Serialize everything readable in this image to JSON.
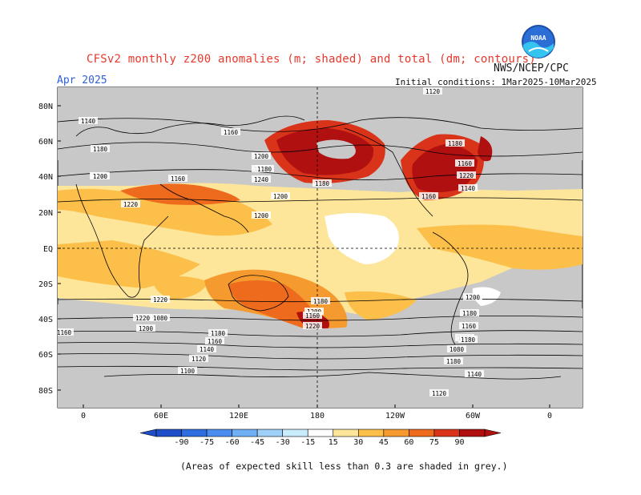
{
  "header": {
    "title": "CFSv2 monthly z200 anomalies (m; shaded) and total (dm; contours)",
    "agency": "NWS/NCEP/CPC",
    "valid_month": "Apr 2025",
    "initial_conditions": "Initial conditions: 1Mar2025-10Mar2025",
    "logo_text": "NOAA"
  },
  "map": {
    "lat_labels": [
      "80N",
      "60N",
      "40N",
      "20N",
      "EQ",
      "20S",
      "40S",
      "60S",
      "80S"
    ],
    "lon_labels": [
      "0",
      "60E",
      "120E",
      "180",
      "120W",
      "60W",
      "0"
    ]
  },
  "contour_labels": [
    "1120",
    "1140",
    "1160",
    "1180",
    "1200",
    "1220",
    "1240",
    "1140",
    "1160",
    "1180",
    "1200",
    "1220",
    "1200",
    "1180",
    "1160",
    "1220",
    "1140",
    "1160",
    "1180",
    "1200",
    "1220",
    "1220",
    "1200",
    "1180",
    "1160",
    "1220",
    "1200",
    "1160",
    "1180",
    "1160",
    "1140",
    "1120",
    "1100",
    "1080",
    "1180",
    "1140",
    "1120",
    "1100",
    "1080",
    "1200",
    "1180",
    "1160",
    "1180"
  ],
  "colorbar": {
    "ticks": [
      "-90",
      "-75",
      "-60",
      "-45",
      "-30",
      "-15",
      "15",
      "30",
      "45",
      "60",
      "75",
      "90"
    ],
    "colors": [
      "#1e4fc8",
      "#2f6ee0",
      "#4a8cf0",
      "#6fb0f5",
      "#9fd0f8",
      "#c8ecfb",
      "#ffffff",
      "#fde59a",
      "#fbbf4a",
      "#f59a2e",
      "#ee6a1c",
      "#d9341a",
      "#b01010"
    ]
  },
  "footnote": "(Areas of expected skill less than 0.3 are shaded in grey.)",
  "colors": {
    "title": "#e8382c",
    "valid": "#2f5fd8",
    "grey": "#c8c8c8"
  }
}
